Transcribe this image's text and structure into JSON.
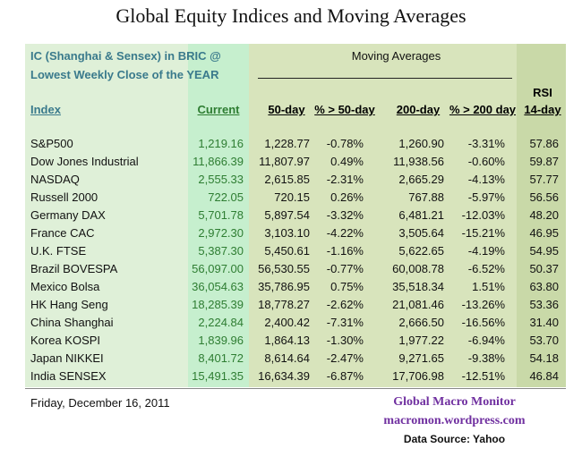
{
  "title": "Global Equity Indices and Moving Averages",
  "header": {
    "note_line1": "IC (Shanghai & Sensex) in BRIC @",
    "note_line2": "Lowest Weekly Close of the YEAR",
    "moving_averages": "Moving Averages",
    "rsi": "RSI",
    "columns": {
      "index": "Index",
      "current": "Current",
      "d50": "50-day",
      "pct50": "% > 50-day",
      "d200": "200-day",
      "pct200": "% > 200 day",
      "rsi14": "14-day"
    }
  },
  "rows": [
    {
      "index": "S&P500",
      "current": "1,219.16",
      "d50": "1,228.77",
      "pct50": "-0.78%",
      "d200": "1,260.90",
      "pct200": "-3.31%",
      "rsi": "57.86"
    },
    {
      "index": "Dow Jones Industrial",
      "current": "11,866.39",
      "d50": "11,807.97",
      "pct50": "0.49%",
      "d200": "11,938.56",
      "pct200": "-0.60%",
      "rsi": "59.87"
    },
    {
      "index": "NASDAQ",
      "current": "2,555.33",
      "d50": "2,615.85",
      "pct50": "-2.31%",
      "d200": "2,665.29",
      "pct200": "-4.13%",
      "rsi": "57.77"
    },
    {
      "index": "Russell 2000",
      "current": "722.05",
      "d50": "720.15",
      "pct50": "0.26%",
      "d200": "767.88",
      "pct200": "-5.97%",
      "rsi": "56.56"
    },
    {
      "index": "Germany DAX",
      "current": "5,701.78",
      "d50": "5,897.54",
      "pct50": "-3.32%",
      "d200": "6,481.21",
      "pct200": "-12.03%",
      "rsi": "48.20"
    },
    {
      "index": "France CAC",
      "current": "2,972.30",
      "d50": "3,103.10",
      "pct50": "-4.22%",
      "d200": "3,505.64",
      "pct200": "-15.21%",
      "rsi": "46.95"
    },
    {
      "index": "U.K. FTSE",
      "current": "5,387.30",
      "d50": "5,450.61",
      "pct50": "-1.16%",
      "d200": "5,622.65",
      "pct200": "-4.19%",
      "rsi": "54.95"
    },
    {
      "index": "Brazil BOVESPA",
      "current": "56,097.00",
      "d50": "56,530.55",
      "pct50": "-0.77%",
      "d200": "60,008.78",
      "pct200": "-6.52%",
      "rsi": "50.37"
    },
    {
      "index": "Mexico Bolsa",
      "current": "36,054.63",
      "d50": "35,786.95",
      "pct50": "0.75%",
      "d200": "35,518.34",
      "pct200": "1.51%",
      "rsi": "63.80"
    },
    {
      "index": "HK  Hang Seng",
      "current": "18,285.39",
      "d50": "18,778.27",
      "pct50": "-2.62%",
      "d200": "21,081.46",
      "pct200": "-13.26%",
      "rsi": "53.36"
    },
    {
      "index": "China Shanghai",
      "current": "2,224.84",
      "d50": "2,400.42",
      "pct50": "-7.31%",
      "d200": "2,666.50",
      "pct200": "-16.56%",
      "rsi": "31.40"
    },
    {
      "index": "Korea KOSPI",
      "current": "1,839.96",
      "d50": "1,864.13",
      "pct50": "-1.30%",
      "d200": "1,977.22",
      "pct200": "-6.94%",
      "rsi": "53.70"
    },
    {
      "index": "Japan NIKKEI",
      "current": "8,401.72",
      "d50": "8,614.64",
      "pct50": "-2.47%",
      "d200": "9,271.65",
      "pct200": "-9.38%",
      "rsi": "54.18"
    },
    {
      "index": "India SENSEX",
      "current": "15,491.35",
      "d50": "16,634.39",
      "pct50": "-6.87%",
      "d200": "17,706.98",
      "pct200": "-12.51%",
      "rsi": "46.84"
    }
  ],
  "footer": {
    "date": "Friday, December 16, 2011",
    "brand": "Global Macro Monitor",
    "site": "macromon.wordpress.com",
    "source": "Data Source: Yahoo"
  },
  "colors": {
    "left_panel": "#dff0d8",
    "current_col": "#c6efce",
    "right_panel": "#d8e4bc",
    "header_teal": "#3a7a8c",
    "current_text": "#2e7d32",
    "brand_purple": "#7030a0"
  }
}
